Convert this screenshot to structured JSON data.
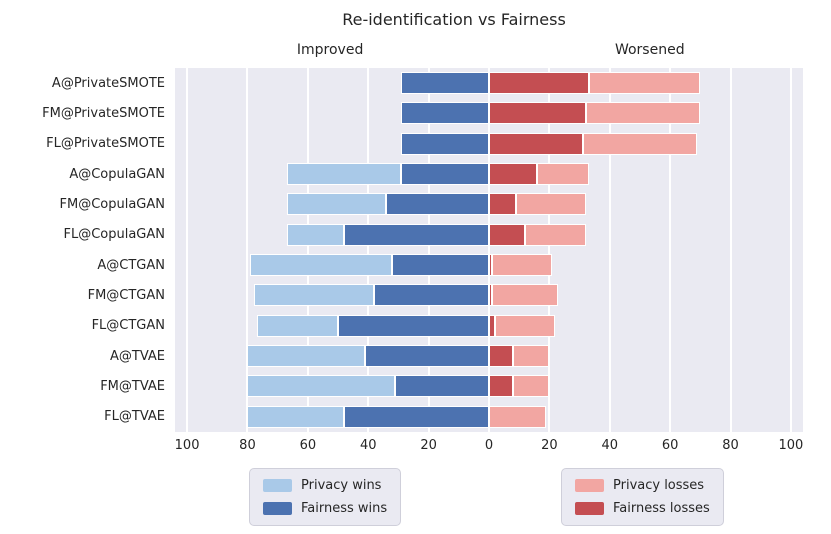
{
  "figure": {
    "title": "Re-identification vs Fairness",
    "annotation_left": "Improved",
    "annotation_right": "Worsened"
  },
  "colors": {
    "privacy_wins": "#a9c9e8",
    "fairness_wins": "#4c72b0",
    "privacy_losses": "#f2a6a2",
    "fairness_losses": "#c44e52",
    "plot_background": "#eaeaf2",
    "gridline": "#ffffff",
    "text": "#262626"
  },
  "chart_data": {
    "type": "bar",
    "variant": "diverging-stacked-horizontal",
    "title": "Re-identification vs Fairness",
    "categories": [
      "A@PrivateSMOTE",
      "FM@PrivateSMOTE",
      "FL@PrivateSMOTE",
      "A@CopulaGAN",
      "FM@CopulaGAN",
      "FL@CopulaGAN",
      "A@CTGAN",
      "FM@CTGAN",
      "FL@CTGAN",
      "A@TVAE",
      "FM@TVAE",
      "FL@TVAE"
    ],
    "series": [
      {
        "name": "Privacy wins",
        "key": "privacy_wins",
        "side": "left",
        "stack_order": "outer",
        "color": "#a9c9e8",
        "values": [
          0,
          0,
          0,
          38,
          33,
          19,
          47,
          40,
          27,
          39,
          49,
          32
        ]
      },
      {
        "name": "Fairness wins",
        "key": "fairness_wins",
        "side": "left",
        "stack_order": "inner",
        "color": "#4c72b0",
        "values": [
          29,
          29,
          29,
          29,
          34,
          48,
          32,
          38,
          50,
          41,
          31,
          48
        ]
      },
      {
        "name": "Fairness losses",
        "key": "fairness_losses",
        "side": "right",
        "stack_order": "inner",
        "color": "#c44e52",
        "values": [
          33,
          32,
          31,
          16,
          9,
          12,
          1,
          1,
          2,
          8,
          8,
          0
        ]
      },
      {
        "name": "Privacy losses",
        "key": "privacy_losses",
        "side": "right",
        "stack_order": "outer",
        "color": "#f2a6a2",
        "values": [
          37,
          38,
          38,
          17,
          23,
          20,
          20,
          22,
          20,
          12,
          12,
          19
        ]
      }
    ],
    "x_tick_labels": [
      100,
      80,
      60,
      40,
      20,
      0,
      20,
      40,
      60,
      80,
      100
    ],
    "xlim": [
      -100,
      100
    ],
    "grid": true,
    "legend_position": "below"
  }
}
